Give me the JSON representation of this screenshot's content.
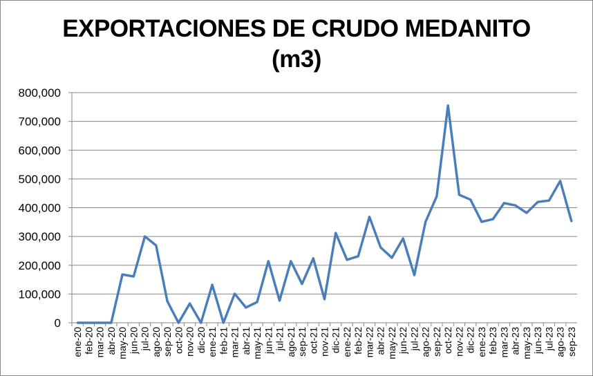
{
  "chart_data": {
    "type": "line",
    "title": [
      "EXPORTACIONES DE CRUDO MEDANITO",
      "(m3)"
    ],
    "xlabel": "",
    "ylabel": "",
    "ylim": [
      0,
      800000
    ],
    "yticks": [
      0,
      100000,
      200000,
      300000,
      400000,
      500000,
      600000,
      700000,
      800000
    ],
    "ytick_labels": [
      "0",
      "100,000",
      "200,000",
      "300,000",
      "400,000",
      "500,000",
      "600,000",
      "700,000",
      "800,000"
    ],
    "grid": true,
    "legend": "none",
    "categories": [
      "ene-20",
      "feb-20",
      "mar-20",
      "abr-20",
      "may-20",
      "jun-20",
      "jul-20",
      "ago-20",
      "sep-20",
      "oct-20",
      "nov-20",
      "dic-20",
      "ene-21",
      "feb-21",
      "mar-21",
      "abr-21",
      "may-21",
      "jun-21",
      "jul-21",
      "ago-21",
      "sep-21",
      "oct-21",
      "nov-21",
      "dic-21",
      "ene-22",
      "feb-22",
      "mar-22",
      "abr-22",
      "may-22",
      "jun-22",
      "jul-22",
      "ago-22",
      "sep-22",
      "oct-22",
      "nov-22",
      "dic-22",
      "ene-23",
      "feb-23",
      "mar-23",
      "abr-23",
      "may-23",
      "jun-23",
      "jul-23",
      "ago-23",
      "sep-23"
    ],
    "series": [
      {
        "name": "Exportaciones",
        "color": "#4a7ebb",
        "values": [
          0,
          0,
          0,
          0,
          168000,
          161000,
          300000,
          269000,
          75000,
          0,
          67000,
          0,
          132000,
          0,
          101000,
          53000,
          72000,
          214000,
          77000,
          214000,
          135000,
          224000,
          82000,
          312000,
          219000,
          231000,
          368000,
          262000,
          226000,
          293000,
          166000,
          351000,
          440000,
          755000,
          445000,
          428000,
          351000,
          360000,
          416000,
          408000,
          382000,
          420000,
          425000,
          493000,
          353000
        ]
      }
    ]
  }
}
